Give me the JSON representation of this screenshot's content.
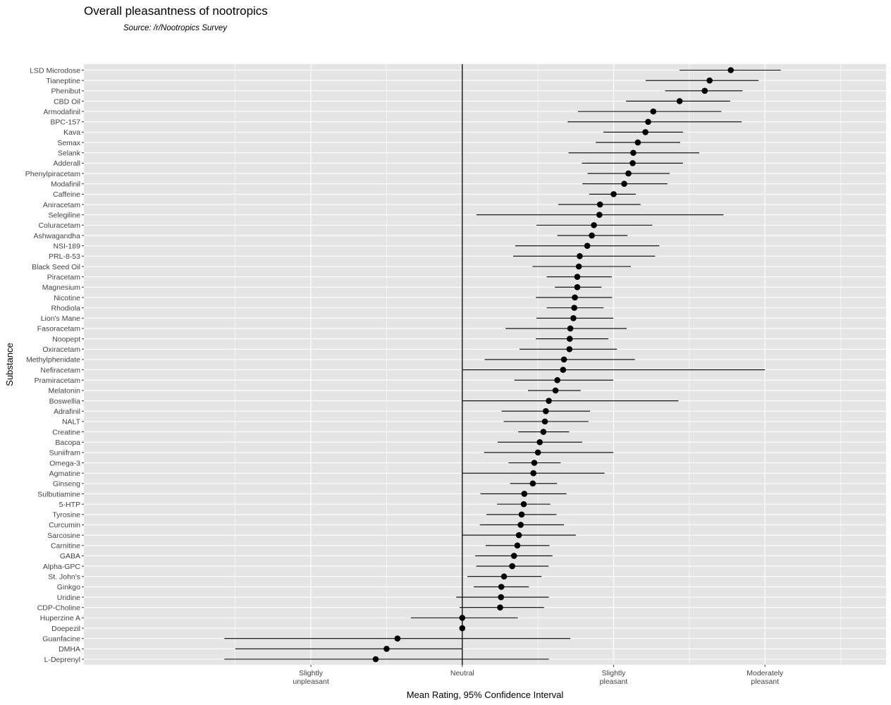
{
  "chart_data": {
    "type": "scatter",
    "title": "Overall pleasantness of nootropics",
    "subtitle": "Source: /r/Nootropics Survey",
    "xlabel": "Mean Rating, 95% Confidence Interval",
    "ylabel": "Substance",
    "xlim": [
      -1.25,
      1.4
    ],
    "x_ticks": [
      {
        "value": -0.5,
        "label": [
          "Slightly",
          "unpleasant"
        ]
      },
      {
        "value": 0,
        "label": [
          "Neutral"
        ]
      },
      {
        "value": 0.5,
        "label": [
          "Slightly",
          "pleasant"
        ]
      },
      {
        "value": 1,
        "label": [
          "Moderately",
          "pleasant"
        ]
      }
    ],
    "reference_line": 0,
    "grid": true,
    "colors": {
      "panel": "#e5e5e5",
      "grid": "#ffffff",
      "point": "#000000",
      "line": "#000000"
    },
    "points": [
      {
        "substance": "LSD Microdose",
        "mean": 0.887,
        "low": 0.718,
        "high": 1.052
      },
      {
        "substance": "Tianeptine",
        "mean": 0.817,
        "low": 0.606,
        "high": 0.979
      },
      {
        "substance": "Phenibut",
        "mean": 0.801,
        "low": 0.67,
        "high": 0.926
      },
      {
        "substance": "CBD Oil",
        "mean": 0.718,
        "low": 0.541,
        "high": 0.885
      },
      {
        "substance": "Armodafinil",
        "mean": 0.631,
        "low": 0.382,
        "high": 0.856
      },
      {
        "substance": "BPC-157",
        "mean": 0.614,
        "low": 0.348,
        "high": 0.923
      },
      {
        "substance": "Kava",
        "mean": 0.605,
        "low": 0.466,
        "high": 0.729
      },
      {
        "substance": "Semax",
        "mean": 0.58,
        "low": 0.441,
        "high": 0.72
      },
      {
        "substance": "Selank",
        "mean": 0.565,
        "low": 0.351,
        "high": 0.783
      },
      {
        "substance": "Adderall",
        "mean": 0.563,
        "low": 0.395,
        "high": 0.729
      },
      {
        "substance": "Phenylpiracetam",
        "mean": 0.549,
        "low": 0.414,
        "high": 0.685
      },
      {
        "substance": "Modafinil",
        "mean": 0.535,
        "low": 0.397,
        "high": 0.678
      },
      {
        "substance": "Caffeine",
        "mean": 0.5,
        "low": 0.419,
        "high": 0.573
      },
      {
        "substance": "Aniracetam",
        "mean": 0.455,
        "low": 0.317,
        "high": 0.589
      },
      {
        "substance": "Selegiline",
        "mean": 0.453,
        "low": 0.047,
        "high": 0.863
      },
      {
        "substance": "Coluracetam",
        "mean": 0.435,
        "low": 0.245,
        "high": 0.628
      },
      {
        "substance": "Ashwagandha",
        "mean": 0.428,
        "low": 0.314,
        "high": 0.546
      },
      {
        "substance": "NSI-189",
        "mean": 0.413,
        "low": 0.175,
        "high": 0.651
      },
      {
        "substance": "PRL-8-53",
        "mean": 0.388,
        "low": 0.168,
        "high": 0.637
      },
      {
        "substance": "Black Seed Oil",
        "mean": 0.385,
        "low": 0.232,
        "high": 0.557
      },
      {
        "substance": "Piracetam",
        "mean": 0.38,
        "low": 0.279,
        "high": 0.494
      },
      {
        "substance": "Magnesium",
        "mean": 0.38,
        "low": 0.306,
        "high": 0.46
      },
      {
        "substance": "Nicotine",
        "mean": 0.372,
        "low": 0.243,
        "high": 0.495
      },
      {
        "substance": "Rhodiola",
        "mean": 0.37,
        "low": 0.279,
        "high": 0.467
      },
      {
        "substance": "Lion's Mane",
        "mean": 0.367,
        "low": 0.245,
        "high": 0.499
      },
      {
        "substance": "Fasoracetam",
        "mean": 0.357,
        "low": 0.143,
        "high": 0.543
      },
      {
        "substance": "Noopept",
        "mean": 0.355,
        "low": 0.243,
        "high": 0.483
      },
      {
        "substance": "Oxiracetam",
        "mean": 0.354,
        "low": 0.189,
        "high": 0.511
      },
      {
        "substance": "Methylphenidate",
        "mean": 0.336,
        "low": 0.074,
        "high": 0.57
      },
      {
        "substance": "Nefiracetam",
        "mean": 0.333,
        "low": 0.0,
        "high": 1.0
      },
      {
        "substance": "Pramiracetam",
        "mean": 0.314,
        "low": 0.172,
        "high": 0.499
      },
      {
        "substance": "Melatonin",
        "mean": 0.308,
        "low": 0.217,
        "high": 0.391
      },
      {
        "substance": "Boswellia",
        "mean": 0.286,
        "low": 0.0,
        "high": 0.714
      },
      {
        "substance": "Adrafinil",
        "mean": 0.276,
        "low": 0.13,
        "high": 0.422
      },
      {
        "substance": "NALT",
        "mean": 0.273,
        "low": 0.137,
        "high": 0.417
      },
      {
        "substance": "Creatine",
        "mean": 0.268,
        "low": 0.185,
        "high": 0.353
      },
      {
        "substance": "Bacopa",
        "mean": 0.256,
        "low": 0.117,
        "high": 0.396
      },
      {
        "substance": "Suniifram",
        "mean": 0.25,
        "low": 0.072,
        "high": 0.499
      },
      {
        "substance": "Omega-3",
        "mean": 0.238,
        "low": 0.153,
        "high": 0.325
      },
      {
        "substance": "Agmatine",
        "mean": 0.235,
        "low": 0.0,
        "high": 0.47
      },
      {
        "substance": "Ginseng",
        "mean": 0.233,
        "low": 0.158,
        "high": 0.313
      },
      {
        "substance": "Sulbutiamine",
        "mean": 0.205,
        "low": 0.06,
        "high": 0.344
      },
      {
        "substance": "5-HTP",
        "mean": 0.203,
        "low": 0.115,
        "high": 0.291
      },
      {
        "substance": "Tyrosine",
        "mean": 0.196,
        "low": 0.08,
        "high": 0.311
      },
      {
        "substance": "Curcumin",
        "mean": 0.193,
        "low": 0.058,
        "high": 0.336
      },
      {
        "substance": "Sarcosine",
        "mean": 0.187,
        "low": 0.0,
        "high": 0.375
      },
      {
        "substance": "Carnitine",
        "mean": 0.182,
        "low": 0.077,
        "high": 0.288
      },
      {
        "substance": "GABA",
        "mean": 0.171,
        "low": 0.043,
        "high": 0.298
      },
      {
        "substance": "Alpha-GPC",
        "mean": 0.165,
        "low": 0.046,
        "high": 0.285
      },
      {
        "substance": "St. John's",
        "mean": 0.138,
        "low": 0.017,
        "high": 0.262
      },
      {
        "substance": "Ginkgo",
        "mean": 0.129,
        "low": 0.038,
        "high": 0.22
      },
      {
        "substance": "Uridine",
        "mean": 0.128,
        "low": -0.02,
        "high": 0.286
      },
      {
        "substance": "CDP-Choline",
        "mean": 0.125,
        "low": -0.009,
        "high": 0.27
      },
      {
        "substance": "Huperzine A",
        "mean": 0.0,
        "low": -0.17,
        "high": 0.183
      },
      {
        "substance": "Doepezil",
        "mean": 0.0,
        "low": 0.0,
        "high": 0.0
      },
      {
        "substance": "Guanfacine",
        "mean": -0.214,
        "low": -0.786,
        "high": 0.357
      },
      {
        "substance": "DMHA",
        "mean": -0.25,
        "low": -0.75,
        "high": 0.0
      },
      {
        "substance": "L-Deprenyl",
        "mean": -0.286,
        "low": -0.786,
        "high": 0.286
      }
    ]
  }
}
